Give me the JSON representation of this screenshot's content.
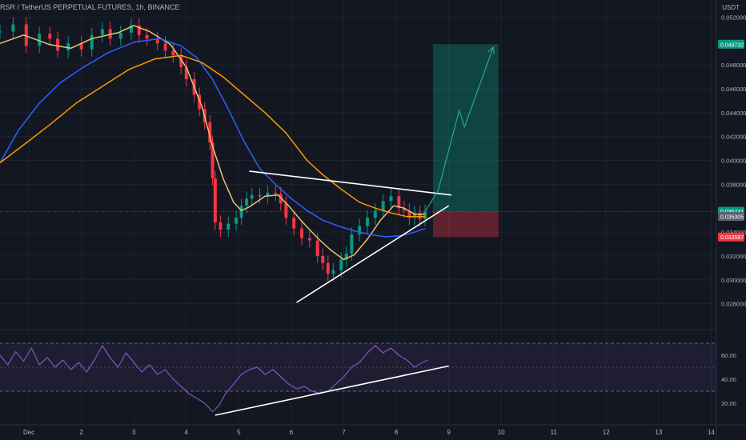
{
  "header": {
    "title": "RSR / TetherUS PERPETUAL FUTURES, 1h, BINANCE",
    "currency": "USDT"
  },
  "chart_data": {
    "type": "line",
    "title": "RSR / TetherUS PERPETUAL FUTURES, 1h, BINANCE",
    "price_axis": {
      "ticks": [
        "0.052000",
        "0.048000",
        "0.046000",
        "0.044000",
        "0.042000",
        "0.040000",
        "0.038000",
        "0.034000",
        "0.032000",
        "0.030000",
        "0.028000"
      ],
      "ylim": [
        0.0265,
        0.0525
      ]
    },
    "price_badges": [
      {
        "label": "0.049732",
        "value": 0.049732,
        "color": "#089981"
      },
      {
        "label": "0.035741",
        "value": 0.035741,
        "color": "#089981"
      },
      {
        "label": "0.035305",
        "value": 0.035305,
        "color": "#5d606b"
      },
      {
        "label": "0.033587",
        "value": 0.033587,
        "color": "#f23645"
      }
    ],
    "x_axis": {
      "ticks": [
        "Dec",
        "2",
        "3",
        "4",
        "5",
        "6",
        "7",
        "8",
        "9",
        "10",
        "11",
        "12",
        "13",
        "14"
      ],
      "tick_days": [
        1,
        2,
        3,
        4,
        5,
        6,
        7,
        8,
        9,
        10,
        11,
        12,
        13,
        14
      ],
      "xlim": [
        0.45,
        14.1
      ]
    },
    "price_series": [
      {
        "color": "#d1d4dc",
        "type": "candles",
        "points": [
          [
            0.45,
            0.0508
          ],
          [
            0.7,
            0.0514
          ],
          [
            0.95,
            0.0496
          ],
          [
            1.2,
            0.0506
          ],
          [
            1.4,
            0.0502
          ],
          [
            1.55,
            0.0492
          ],
          [
            1.75,
            0.0498
          ],
          [
            2.0,
            0.0493
          ],
          [
            2.2,
            0.0505
          ],
          [
            2.4,
            0.051
          ],
          [
            2.55,
            0.0502
          ],
          [
            2.75,
            0.0507
          ],
          [
            2.95,
            0.0513
          ],
          [
            3.1,
            0.0505
          ],
          [
            3.25,
            0.0502
          ],
          [
            3.45,
            0.0498
          ],
          [
            3.6,
            0.0492
          ],
          [
            3.75,
            0.0488
          ],
          [
            3.9,
            0.0478
          ],
          [
            4.0,
            0.0468
          ],
          [
            4.15,
            0.0455
          ],
          [
            4.25,
            0.0443
          ],
          [
            4.35,
            0.0432
          ],
          [
            4.45,
            0.0415
          ],
          [
            4.5,
            0.0385
          ],
          [
            4.55,
            0.0348
          ],
          [
            4.65,
            0.0342
          ],
          [
            4.8,
            0.0347
          ],
          [
            4.95,
            0.0352
          ],
          [
            5.05,
            0.0362
          ],
          [
            5.15,
            0.0368
          ],
          [
            5.25,
            0.0371
          ],
          [
            5.4,
            0.037
          ],
          [
            5.55,
            0.0373
          ],
          [
            5.7,
            0.0372
          ],
          [
            5.8,
            0.0364
          ],
          [
            5.9,
            0.0352
          ],
          [
            6.05,
            0.0343
          ],
          [
            6.2,
            0.0335
          ],
          [
            6.35,
            0.0333
          ],
          [
            6.5,
            0.032
          ],
          [
            6.6,
            0.0314
          ],
          [
            6.7,
            0.0305
          ],
          [
            6.8,
            0.0308
          ],
          [
            6.95,
            0.0317
          ],
          [
            7.05,
            0.0322
          ],
          [
            7.15,
            0.0338
          ],
          [
            7.3,
            0.0345
          ],
          [
            7.45,
            0.0352
          ],
          [
            7.6,
            0.0358
          ],
          [
            7.75,
            0.0366
          ],
          [
            7.9,
            0.037
          ],
          [
            8.05,
            0.036
          ],
          [
            8.15,
            0.0358
          ],
          [
            8.25,
            0.0352
          ],
          [
            8.35,
            0.0356
          ],
          [
            8.45,
            0.0351
          ],
          [
            8.55,
            0.0357
          ]
        ]
      },
      {
        "color": "#e8c26e",
        "points": [
          [
            0.45,
            0.0498
          ],
          [
            0.9,
            0.0505
          ],
          [
            1.4,
            0.0497
          ],
          [
            1.8,
            0.0494
          ],
          [
            2.2,
            0.0502
          ],
          [
            2.7,
            0.0507
          ],
          [
            3.0,
            0.0513
          ],
          [
            3.3,
            0.0508
          ],
          [
            3.7,
            0.0497
          ],
          [
            4.0,
            0.0478
          ],
          [
            4.3,
            0.0445
          ],
          [
            4.5,
            0.0412
          ],
          [
            4.7,
            0.0385
          ],
          [
            4.9,
            0.0365
          ],
          [
            5.05,
            0.0358
          ],
          [
            5.2,
            0.0361
          ],
          [
            5.5,
            0.037
          ],
          [
            5.75,
            0.0371
          ],
          [
            5.95,
            0.0362
          ],
          [
            6.2,
            0.0349
          ],
          [
            6.5,
            0.0335
          ],
          [
            6.75,
            0.0325
          ],
          [
            7.0,
            0.0317
          ],
          [
            7.2,
            0.0321
          ],
          [
            7.45,
            0.0334
          ],
          [
            7.7,
            0.035
          ],
          [
            7.95,
            0.0362
          ],
          [
            8.15,
            0.036
          ],
          [
            8.35,
            0.0355
          ],
          [
            8.55,
            0.0355
          ]
        ]
      },
      {
        "color": "#2962ff",
        "points": [
          [
            0.45,
            0.0398
          ],
          [
            0.8,
            0.0425
          ],
          [
            1.2,
            0.0448
          ],
          [
            1.6,
            0.0465
          ],
          [
            2.0,
            0.0477
          ],
          [
            2.5,
            0.049
          ],
          [
            3.0,
            0.0499
          ],
          [
            3.5,
            0.0502
          ],
          [
            3.9,
            0.0496
          ],
          [
            4.2,
            0.0486
          ],
          [
            4.5,
            0.0468
          ],
          [
            4.8,
            0.0443
          ],
          [
            5.1,
            0.0416
          ],
          [
            5.4,
            0.0393
          ],
          [
            5.7,
            0.038
          ],
          [
            6.0,
            0.0368
          ],
          [
            6.3,
            0.0358
          ],
          [
            6.6,
            0.035
          ],
          [
            6.9,
            0.0345
          ],
          [
            7.2,
            0.0341
          ],
          [
            7.5,
            0.0338
          ],
          [
            7.8,
            0.0336
          ],
          [
            8.1,
            0.0337
          ],
          [
            8.35,
            0.034
          ],
          [
            8.55,
            0.0343
          ]
        ]
      },
      {
        "color": "#ff9800",
        "points": [
          [
            0.45,
            0.0398
          ],
          [
            0.9,
            0.0413
          ],
          [
            1.4,
            0.043
          ],
          [
            1.9,
            0.0448
          ],
          [
            2.4,
            0.0462
          ],
          [
            2.9,
            0.0476
          ],
          [
            3.4,
            0.0485
          ],
          [
            3.9,
            0.0488
          ],
          [
            4.3,
            0.0482
          ],
          [
            4.7,
            0.047
          ],
          [
            5.1,
            0.0455
          ],
          [
            5.5,
            0.044
          ],
          [
            5.9,
            0.0423
          ],
          [
            6.3,
            0.04
          ],
          [
            6.6,
            0.0388
          ],
          [
            6.95,
            0.0376
          ],
          [
            7.3,
            0.0365
          ],
          [
            7.6,
            0.036
          ],
          [
            7.9,
            0.0356
          ],
          [
            8.2,
            0.0353
          ],
          [
            8.55,
            0.0353
          ]
        ]
      }
    ],
    "projection_path": [
      [
        8.55,
        0.0357
      ],
      [
        8.8,
        0.0375
      ],
      [
        9.2,
        0.0442
      ],
      [
        9.3,
        0.0428
      ],
      [
        9.85,
        0.0495
      ]
    ],
    "annotations": {
      "triangle_upper": [
        [
          5.2,
          0.0391
        ],
        [
          9.05,
          0.0371
        ]
      ],
      "triangle_lower": [
        [
          6.1,
          0.0281
        ],
        [
          9.0,
          0.0362
        ]
      ],
      "long_position": {
        "x_start": 8.7,
        "x_end": 9.95,
        "entry": 0.0357,
        "target": 0.049732,
        "stop": 0.033587
      }
    },
    "rsi": {
      "ticks": [
        "60.00",
        "40.00",
        "20.00"
      ],
      "tick_values": [
        60,
        40,
        20
      ],
      "ylim": [
        6,
        76
      ],
      "band": [
        30,
        70
      ],
      "midline": 50,
      "color": "#7e57c2",
      "values": [
        [
          0.45,
          60
        ],
        [
          0.6,
          52
        ],
        [
          0.75,
          63
        ],
        [
          0.9,
          55
        ],
        [
          1.05,
          66
        ],
        [
          1.2,
          52
        ],
        [
          1.35,
          58
        ],
        [
          1.5,
          50
        ],
        [
          1.65,
          56
        ],
        [
          1.8,
          48
        ],
        [
          1.95,
          54
        ],
        [
          2.1,
          46
        ],
        [
          2.25,
          56
        ],
        [
          2.4,
          68
        ],
        [
          2.55,
          58
        ],
        [
          2.7,
          50
        ],
        [
          2.85,
          62
        ],
        [
          3.0,
          54
        ],
        [
          3.15,
          46
        ],
        [
          3.3,
          52
        ],
        [
          3.45,
          44
        ],
        [
          3.6,
          48
        ],
        [
          3.75,
          40
        ],
        [
          3.9,
          34
        ],
        [
          4.05,
          28
        ],
        [
          4.2,
          24
        ],
        [
          4.35,
          20
        ],
        [
          4.5,
          13
        ],
        [
          4.62,
          18
        ],
        [
          4.75,
          28
        ],
        [
          4.9,
          36
        ],
        [
          5.05,
          44
        ],
        [
          5.2,
          48
        ],
        [
          5.35,
          50
        ],
        [
          5.5,
          44
        ],
        [
          5.65,
          48
        ],
        [
          5.8,
          42
        ],
        [
          5.95,
          36
        ],
        [
          6.1,
          32
        ],
        [
          6.25,
          34
        ],
        [
          6.4,
          30
        ],
        [
          6.55,
          28
        ],
        [
          6.7,
          30
        ],
        [
          6.85,
          36
        ],
        [
          7.0,
          42
        ],
        [
          7.15,
          50
        ],
        [
          7.3,
          54
        ],
        [
          7.45,
          62
        ],
        [
          7.6,
          68
        ],
        [
          7.75,
          62
        ],
        [
          7.9,
          66
        ],
        [
          8.05,
          60
        ],
        [
          8.2,
          56
        ],
        [
          8.35,
          50
        ],
        [
          8.5,
          54
        ],
        [
          8.6,
          56
        ]
      ],
      "trendline": [
        [
          4.55,
          10
        ],
        [
          9.0,
          51
        ]
      ]
    },
    "grid": true,
    "legend": "none"
  }
}
